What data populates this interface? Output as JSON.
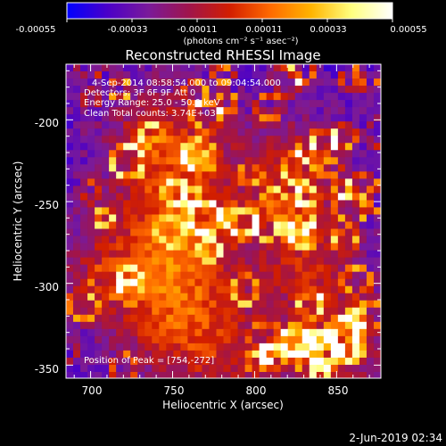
{
  "colorbar": {
    "tick_labels": [
      "-0.00055",
      "-0.00033",
      "-0.00011",
      "0.00011",
      "0.00033",
      "0.00055"
    ],
    "range": [
      -0.00055,
      0.00055
    ],
    "units_label": "(photons cm⁻² s⁻¹ asec⁻²)",
    "stops": [
      "#0000ff",
      "#4b00c8",
      "#7a1a9a",
      "#a0144b",
      "#d21e00",
      "#ff6a00",
      "#ffb400",
      "#ffff80",
      "#ffffff"
    ]
  },
  "plot": {
    "title": "Reconstructed RHESSI Image",
    "xlabel": "Heliocentric X (arcsec)",
    "ylabel": "Heliocentric Y (arcsec)",
    "xlim": [
      685,
      877
    ],
    "ylim": [
      -358,
      -166
    ],
    "xticks": [
      700,
      750,
      800,
      850
    ],
    "yticks": [
      -200,
      -250,
      -300,
      -350
    ],
    "annotations": [
      "4-Sep-2014 08:58:54.000 to 09:04:54.000",
      "Detectors: 3F 6F 9F  Att 0",
      "Energy Range: 25.0 - 50.0 keV",
      "Clean     Total counts: 3.74E+03"
    ],
    "peak_label": "Position of Peak = [754,-272]"
  },
  "footer": {
    "date": "2-Jun-2019 02:34"
  }
}
